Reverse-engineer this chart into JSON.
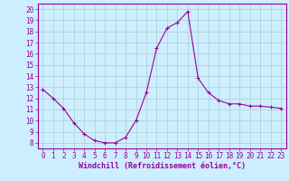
{
  "x": [
    0,
    1,
    2,
    3,
    4,
    5,
    6,
    7,
    8,
    9,
    10,
    11,
    12,
    13,
    14,
    15,
    16,
    17,
    18,
    19,
    20,
    21,
    22,
    23
  ],
  "y": [
    12.8,
    12.0,
    11.1,
    9.8,
    8.8,
    8.2,
    8.0,
    8.0,
    8.5,
    10.0,
    12.5,
    16.5,
    18.3,
    18.8,
    19.8,
    13.8,
    12.5,
    11.8,
    11.5,
    11.5,
    11.3,
    11.3,
    11.2,
    11.1
  ],
  "line_color": "#990099",
  "marker": "+",
  "marker_size": 3,
  "background_color": "#cceeff",
  "grid_color": "#aacccc",
  "xlabel": "Windchill (Refroidissement éolien,°C)",
  "xlim": [
    -0.5,
    23.5
  ],
  "ylim": [
    7.5,
    20.5
  ],
  "yticks": [
    8,
    9,
    10,
    11,
    12,
    13,
    14,
    15,
    16,
    17,
    18,
    19,
    20
  ],
  "xticks": [
    0,
    1,
    2,
    3,
    4,
    5,
    6,
    7,
    8,
    9,
    10,
    11,
    12,
    13,
    14,
    15,
    16,
    17,
    18,
    19,
    20,
    21,
    22,
    23
  ],
  "tick_color": "#990099",
  "axis_color": "#990099",
  "label_fontsize": 6.0,
  "tick_fontsize": 5.5
}
